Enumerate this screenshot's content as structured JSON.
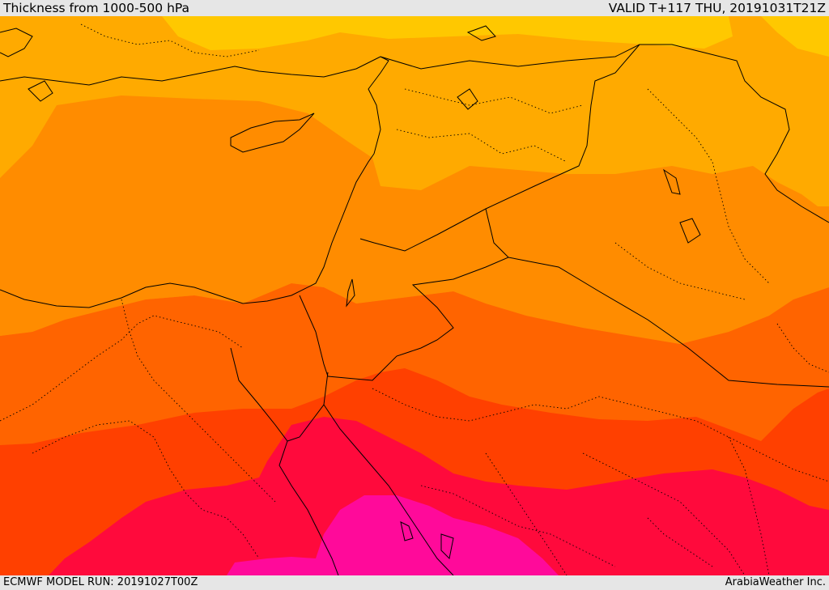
{
  "header": {
    "title": "Thickness from 1000-500 hPa",
    "valid_time": "VALID T+117 THU, 20191031T21Z"
  },
  "footer": {
    "model_run": "ECMWF MODEL RUN: 20191027T00Z",
    "credit": "ArabiaWeather Inc."
  },
  "colors": {
    "band_1": "#ffc800",
    "band_2": "#ffaa00",
    "band_3": "#ff8c00",
    "band_4": "#ff6400",
    "band_5": "#ff4000",
    "band_6": "#ff0a3c",
    "band_7": "#ff0a9a",
    "coastline": "#000000"
  }
}
